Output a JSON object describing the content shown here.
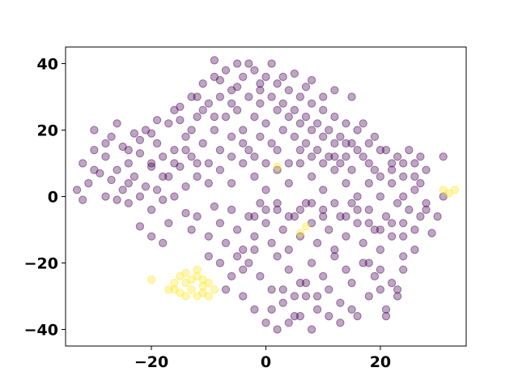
{
  "chart_data": {
    "type": "scatter",
    "title": "",
    "xlabel": "",
    "ylabel": "",
    "xlim": [
      -35,
      35
    ],
    "ylim": [
      -45,
      45
    ],
    "xticks": [
      -20,
      0,
      20
    ],
    "yticks": [
      -40,
      -20,
      0,
      20,
      40
    ],
    "xtick_labels": [
      "−20",
      "0",
      "20"
    ],
    "ytick_labels": [
      "−40",
      "−20",
      "0",
      "20",
      "40"
    ],
    "grid": false,
    "legend": "none",
    "point_alpha": 0.35,
    "colors": {
      "class_0": "#440154",
      "class_1": "#fde725"
    },
    "series": [
      {
        "class": 0,
        "color": "#440154",
        "points": [
          [
            -33,
            2
          ],
          [
            -32,
            10
          ],
          [
            -31,
            4
          ],
          [
            -30,
            14
          ],
          [
            -30,
            20
          ],
          [
            -29,
            7
          ],
          [
            -28,
            0
          ],
          [
            -28,
            12
          ],
          [
            -27,
            18
          ],
          [
            -27,
            5
          ],
          [
            -26,
            22
          ],
          [
            -26,
            8
          ],
          [
            -25,
            15
          ],
          [
            -25,
            2
          ],
          [
            -24,
            10
          ],
          [
            -24,
            -2
          ],
          [
            -23,
            19
          ],
          [
            -23,
            6
          ],
          [
            -22,
            13
          ],
          [
            -22,
            0
          ],
          [
            -21,
            20
          ],
          [
            -21,
            3
          ],
          [
            -20,
            9
          ],
          [
            -20,
            -4
          ],
          [
            -19,
            16
          ],
          [
            -19,
            2
          ],
          [
            -18,
            12
          ],
          [
            -18,
            -1
          ],
          [
            -17,
            22
          ],
          [
            -17,
            6
          ],
          [
            -16,
            14
          ],
          [
            -16,
            0
          ],
          [
            -15,
            27
          ],
          [
            -15,
            9
          ],
          [
            -14,
            18
          ],
          [
            -14,
            3
          ],
          [
            -13,
            30
          ],
          [
            -13,
            12
          ],
          [
            -12,
            24
          ],
          [
            -12,
            6
          ],
          [
            -11,
            34
          ],
          [
            -11,
            16
          ],
          [
            -10,
            28
          ],
          [
            -10,
            10
          ],
          [
            -9,
            36
          ],
          [
            -9,
            20
          ],
          [
            -8,
            30
          ],
          [
            -8,
            14
          ],
          [
            -7,
            38
          ],
          [
            -7,
            24
          ],
          [
            -6,
            32
          ],
          [
            -6,
            18
          ],
          [
            -5,
            40
          ],
          [
            -5,
            26
          ],
          [
            -4,
            36
          ],
          [
            -4,
            20
          ],
          [
            -3,
            30
          ],
          [
            -3,
            14
          ],
          [
            -2,
            38
          ],
          [
            -2,
            24
          ],
          [
            -1,
            32
          ],
          [
            -1,
            18
          ],
          [
            0,
            36
          ],
          [
            0,
            22
          ],
          [
            1,
            30
          ],
          [
            1,
            16
          ],
          [
            2,
            34
          ],
          [
            2,
            26
          ],
          [
            3,
            28
          ],
          [
            3,
            20
          ],
          [
            4,
            32
          ],
          [
            4,
            24
          ],
          [
            5,
            26
          ],
          [
            5,
            18
          ],
          [
            6,
            30
          ],
          [
            6,
            22
          ],
          [
            7,
            24
          ],
          [
            7,
            16
          ],
          [
            8,
            28
          ],
          [
            8,
            20
          ],
          [
            9,
            22
          ],
          [
            9,
            14
          ],
          [
            10,
            26
          ],
          [
            10,
            18
          ],
          [
            11,
            20
          ],
          [
            11,
            12
          ],
          [
            12,
            24
          ],
          [
            12,
            16
          ],
          [
            13,
            18
          ],
          [
            13,
            10
          ],
          [
            14,
            22
          ],
          [
            14,
            12
          ],
          [
            15,
            16
          ],
          [
            15,
            8
          ],
          [
            16,
            20
          ],
          [
            17,
            12
          ],
          [
            18,
            16
          ],
          [
            19,
            8
          ],
          [
            20,
            14
          ],
          [
            22,
            10
          ],
          [
            24,
            6
          ],
          [
            26,
            10
          ],
          [
            27,
            4
          ],
          [
            28,
            8
          ],
          [
            -9,
            41
          ],
          [
            -5,
            33
          ],
          [
            -1,
            28
          ],
          [
            3,
            36
          ],
          [
            7,
            33
          ],
          [
            10,
            30
          ],
          [
            -22,
            -9
          ],
          [
            -20,
            -12
          ],
          [
            -18,
            -14
          ],
          [
            -17,
            -8
          ],
          [
            -14,
            -5
          ],
          [
            -13,
            -10
          ],
          [
            -12,
            -6
          ],
          [
            -10,
            -12
          ],
          [
            -9,
            -3
          ],
          [
            -8,
            -8
          ],
          [
            -7,
            -14
          ],
          [
            -6,
            -4
          ],
          [
            -5,
            -10
          ],
          [
            -4,
            -16
          ],
          [
            -3,
            -6
          ],
          [
            -2,
            -12
          ],
          [
            -1,
            -2
          ],
          [
            0,
            -8
          ],
          [
            1,
            -14
          ],
          [
            2,
            -4
          ],
          [
            3,
            -10
          ],
          [
            4,
            -16
          ],
          [
            5,
            -6
          ],
          [
            6,
            -12
          ],
          [
            7,
            -2
          ],
          [
            8,
            -8
          ],
          [
            9,
            -14
          ],
          [
            10,
            -4
          ],
          [
            11,
            -10
          ],
          [
            12,
            -16
          ],
          [
            13,
            -6
          ],
          [
            14,
            -12
          ],
          [
            15,
            -2
          ],
          [
            16,
            -8
          ],
          [
            17,
            -14
          ],
          [
            18,
            -4
          ],
          [
            19,
            -10
          ],
          [
            20,
            -16
          ],
          [
            21,
            -6
          ],
          [
            22,
            -12
          ],
          [
            23,
            -2
          ],
          [
            24,
            -8
          ],
          [
            25,
            -4
          ],
          [
            26,
            -10
          ],
          [
            27,
            -6
          ],
          [
            29,
            -11
          ],
          [
            -6,
            4
          ],
          [
            -4,
            10
          ],
          [
            -2,
            6
          ],
          [
            0,
            2
          ],
          [
            2,
            8
          ],
          [
            4,
            4
          ],
          [
            6,
            10
          ],
          [
            8,
            6
          ],
          [
            10,
            2
          ],
          [
            12,
            8
          ],
          [
            14,
            4
          ],
          [
            16,
            0
          ],
          [
            18,
            4
          ],
          [
            20,
            0
          ],
          [
            22,
            4
          ],
          [
            24,
            0
          ],
          [
            26,
            2
          ],
          [
            28,
            -2
          ],
          [
            31,
            0
          ],
          [
            -3,
            -20
          ],
          [
            -1,
            -24
          ],
          [
            1,
            -28
          ],
          [
            2,
            -18
          ],
          [
            3,
            -32
          ],
          [
            4,
            -22
          ],
          [
            5,
            -36
          ],
          [
            6,
            -26
          ],
          [
            7,
            -30
          ],
          [
            8,
            -20
          ],
          [
            9,
            -34
          ],
          [
            10,
            -24
          ],
          [
            11,
            -28
          ],
          [
            12,
            -18
          ],
          [
            13,
            -32
          ],
          [
            14,
            -22
          ],
          [
            15,
            -26
          ],
          [
            16,
            -36
          ],
          [
            17,
            -20
          ],
          [
            18,
            -30
          ],
          [
            19,
            -24
          ],
          [
            20,
            -28
          ],
          [
            21,
            -34
          ],
          [
            22,
            -26
          ],
          [
            23,
            -30
          ],
          [
            24,
            -22
          ],
          [
            -4,
            -30
          ],
          [
            -2,
            -34
          ],
          [
            0,
            -38
          ],
          [
            2,
            -40
          ],
          [
            4,
            -38
          ],
          [
            6,
            -36
          ],
          [
            8,
            -40
          ],
          [
            1,
            -34
          ],
          [
            3,
            -28
          ],
          [
            5,
            -30
          ],
          [
            7,
            -26
          ],
          [
            9,
            -30
          ],
          [
            11,
            -36
          ],
          [
            13,
            -38
          ],
          [
            15,
            -34
          ],
          [
            21,
            -36
          ],
          [
            23,
            -28
          ],
          [
            -26,
            -1
          ],
          [
            -24,
            4
          ],
          [
            -30,
            8
          ],
          [
            -32,
            -1
          ],
          [
            -28,
            16
          ],
          [
            -19,
            23
          ],
          [
            -16,
            26
          ],
          [
            -20,
            19
          ],
          [
            -13,
            20
          ],
          [
            -11,
            26
          ],
          [
            -9,
            24
          ],
          [
            -12,
            30
          ],
          [
            -15,
            23
          ],
          [
            -8,
            35
          ],
          [
            -6,
            28
          ],
          [
            -3,
            40
          ],
          [
            -1,
            34
          ],
          [
            1,
            40
          ],
          [
            5,
            37
          ],
          [
            8,
            35
          ],
          [
            12,
            32
          ],
          [
            15,
            30
          ],
          [
            17,
            22
          ],
          [
            19,
            18
          ],
          [
            21,
            14
          ],
          [
            23,
            12
          ],
          [
            25,
            14
          ],
          [
            27,
            12
          ],
          [
            -10,
            -18
          ],
          [
            -8,
            -20
          ],
          [
            -6,
            -24
          ],
          [
            -4,
            -22
          ],
          [
            -7,
            -28
          ],
          [
            -5,
            -18
          ],
          [
            -2,
            -16
          ],
          [
            18,
            -20
          ],
          [
            20,
            -22
          ],
          [
            24,
            -18
          ],
          [
            26,
            -16
          ],
          [
            28,
            -4
          ],
          [
            30,
            -6
          ],
          [
            31,
            12
          ],
          [
            -24,
            14
          ],
          [
            -22,
            17
          ],
          [
            -20,
            10
          ],
          [
            -18,
            6
          ],
          [
            -16,
            10
          ],
          [
            -14,
            14
          ],
          [
            -12,
            10
          ],
          [
            -10,
            4
          ],
          [
            -8,
            8
          ],
          [
            -6,
            12
          ],
          [
            -4,
            16
          ],
          [
            -2,
            12
          ],
          [
            0,
            10
          ],
          [
            2,
            14
          ],
          [
            4,
            10
          ],
          [
            6,
            14
          ],
          [
            8,
            12
          ],
          [
            10,
            10
          ],
          [
            12,
            12
          ],
          [
            14,
            16
          ],
          [
            16,
            14
          ],
          [
            18,
            10
          ],
          [
            20,
            6
          ],
          [
            22,
            8
          ],
          [
            24,
            10
          ],
          [
            26,
            6
          ],
          [
            -2,
            -6
          ],
          [
            0,
            -4
          ],
          [
            2,
            -2
          ],
          [
            4,
            -6
          ],
          [
            6,
            -4
          ],
          [
            8,
            -2
          ],
          [
            10,
            -6
          ],
          [
            12,
            -2
          ],
          [
            14,
            -6
          ],
          [
            16,
            -4
          ],
          [
            18,
            -8
          ],
          [
            20,
            -10
          ],
          [
            22,
            -8
          ],
          [
            24,
            -12
          ]
        ]
      },
      {
        "class": 1,
        "color": "#fde725",
        "points": [
          [
            -20,
            -25
          ],
          [
            -17,
            -28
          ],
          [
            -16,
            -26
          ],
          [
            -15,
            -24
          ],
          [
            -15,
            -29
          ],
          [
            -14,
            -26
          ],
          [
            -14,
            -23
          ],
          [
            -13,
            -28
          ],
          [
            -13,
            -25
          ],
          [
            -12,
            -30
          ],
          [
            -12,
            -24
          ],
          [
            -11,
            -27
          ],
          [
            -11,
            -29
          ],
          [
            -10,
            -26
          ],
          [
            -10,
            -30
          ],
          [
            -9,
            -28
          ],
          [
            -14,
            -30
          ],
          [
            -16,
            -28
          ],
          [
            -12,
            -22
          ],
          [
            -11,
            -25
          ],
          [
            2,
            9
          ],
          [
            6,
            -11
          ],
          [
            7,
            -9
          ],
          [
            31,
            2
          ],
          [
            32,
            1
          ],
          [
            33,
            2
          ]
        ]
      }
    ]
  }
}
